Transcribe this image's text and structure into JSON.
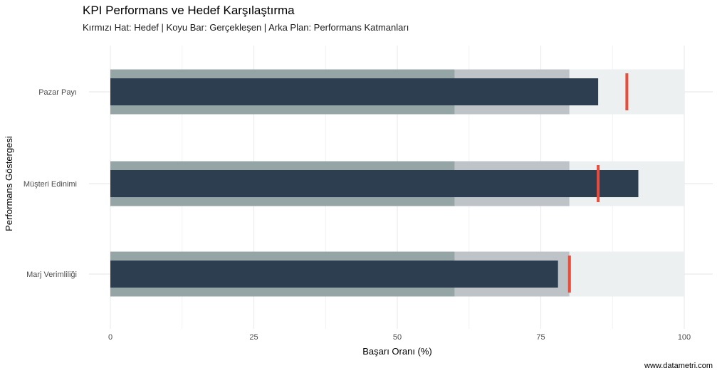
{
  "chart_data": {
    "type": "bar",
    "title": "KPI Performans ve Hedef Karşılaştırma",
    "subtitle": "Kırmızı Hat: Hedef | Koyu Bar: Gerçekleşen | Arka Plan: Performans Katmanları",
    "xlabel": "Başarı Oranı (%)",
    "ylabel": "Performans Göstergesi",
    "xlim": [
      0,
      100
    ],
    "x_ticks": [
      "0",
      "25",
      "50",
      "75",
      "100"
    ],
    "x_tick_values": [
      0,
      25,
      50,
      75,
      100
    ],
    "categories": [
      "Pazar Payı",
      "Müşteri Edinimi",
      "Marj Verimliliği"
    ],
    "bands": [
      {
        "from": 0,
        "to": 60,
        "color": "#95a5a6"
      },
      {
        "from": 60,
        "to": 80,
        "color": "#bdc3c7"
      },
      {
        "from": 80,
        "to": 100,
        "color": "#ecf0f1"
      }
    ],
    "series": [
      {
        "values": [
          85,
          92,
          78
        ],
        "color": "#2c3e50"
      },
      {
        "values": [
          90,
          85,
          80
        ],
        "color": "#e74c3c"
      }
    ],
    "grid": true,
    "caption": "www.datametri.com"
  }
}
